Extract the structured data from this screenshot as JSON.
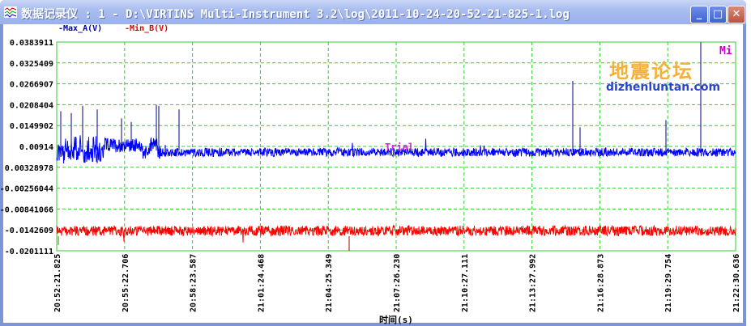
{
  "window": {
    "title": "数据记录仪 : 1 - D:\\VIRTINS Multi-Instrument 3.2\\log\\2011-10-24-20-52-21-825-1.log",
    "minimize": "_",
    "maximize": "□",
    "close": "✕"
  },
  "legend": {
    "max_a": "-Max_A(V)",
    "min_b": "-Min_B(V)"
  },
  "badges": {
    "mi": "Mi",
    "trial": "Trial"
  },
  "watermark": {
    "cn": "地震论坛",
    "url": "dizhenluntan.com"
  },
  "chart_data": {
    "type": "line",
    "xlabel": "时间(s)",
    "ylim": [
      -0.0201111,
      0.0383911
    ],
    "y_ticks": [
      "0.0383911",
      "0.0325409",
      "0.0266907",
      "0.0208404",
      "0.0149902",
      "0.00914",
      "0.00328978",
      "-0.00256044",
      "-0.00841066",
      "-0.0142609",
      "-0.0201111"
    ],
    "x_ticks": [
      "20:52:21.825",
      "20:55:22.706",
      "20:58:23.587",
      "21:01:24.468",
      "21:04:25.349",
      "21:07:26.230",
      "21:10:27.111",
      "21:13:27.992",
      "21:16:28.873",
      "21:19:29.754",
      "21:22:30.636"
    ],
    "grid": true,
    "legend_placement": "top-left",
    "series": [
      {
        "name": "Max_A(V)",
        "color": "#0000ff",
        "baseline": 0.0075,
        "spikes_max": [
          0.0208,
          0.021,
          0.0275,
          0.0383
        ]
      },
      {
        "name": "Min_B(V)",
        "color": "#ff0000",
        "baseline": -0.0145,
        "dips_min": -0.0201
      }
    ],
    "colors": {
      "grid": "#33cc33",
      "trial": "#cc33cc",
      "mi": "#cc00cc"
    }
  }
}
